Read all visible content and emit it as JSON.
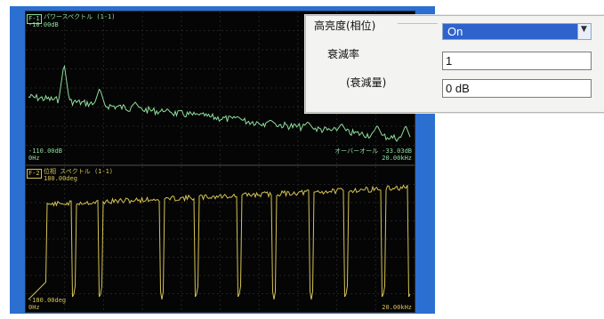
{
  "panel1": {
    "tag": "F-1",
    "title": "パワースペクトル (1-1)",
    "top_value": "-10.00dB",
    "bottom_value": "-110.00dB",
    "x_start": "0Hz",
    "overall": "オーバーオール -33.03dB",
    "x_end": "20.00kHz",
    "trace_color": "#8edc9c"
  },
  "panel2": {
    "tag": "F-2",
    "title": "位相 スペクトル (1-1)",
    "top_value": "180.00deg",
    "bottom_value": "-180.00deg",
    "x_start": "0Hz",
    "x_end": "20.00kHz",
    "trace_color": "#d4c256"
  },
  "dialog": {
    "highlight_label": "高亮度(相位)",
    "highlight_value": "On",
    "attenuation_label": "衰減率",
    "attenuation_value": "1",
    "attenuation_amount_label": "(衰減量)",
    "attenuation_amount_value": "0 dB",
    "dropdown_icon": "chevron-down-icon"
  },
  "colors": {
    "frame": "#2b6fd0",
    "panel_bg": "#050505",
    "grid": "#222222",
    "selected": "#2f63cc"
  }
}
